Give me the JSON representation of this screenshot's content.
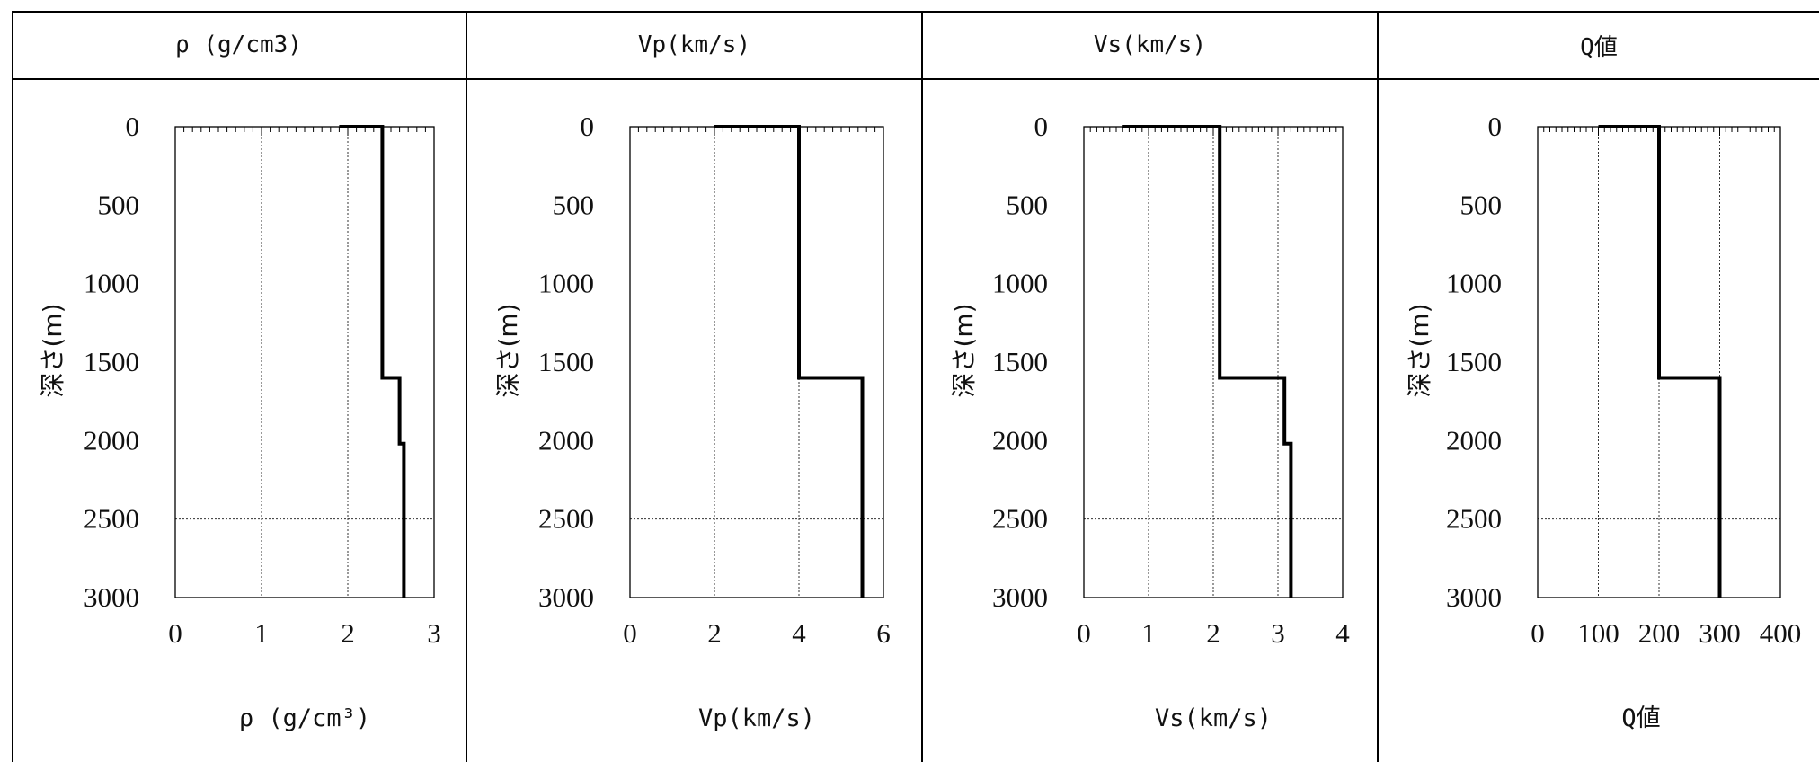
{
  "panel_headers": [
    "ρ (g/cm3)",
    "Vp(km/s)",
    "Vs(km/s)",
    "Q値"
  ],
  "chart_data": [
    {
      "type": "line",
      "title": "ρ (g/cm3)",
      "xlabel": "ρ (g/cm³)",
      "ylabel": "深さ(m)",
      "xlim": [
        0,
        3
      ],
      "ylim": [
        3000,
        0
      ],
      "xticks": [
        "0",
        "1",
        "2",
        "3"
      ],
      "yticks": [
        "0",
        "500",
        "1000",
        "1500",
        "2000",
        "2500",
        "3000"
      ],
      "grid_x": [
        1,
        2
      ],
      "grid_y": [
        2500
      ],
      "series": [
        {
          "x": [
            1.9,
            2.4,
            2.4,
            2.6,
            2.6,
            2.65,
            2.65
          ],
          "y": [
            0,
            0,
            1600,
            1600,
            2020,
            2020,
            3000
          ]
        }
      ]
    },
    {
      "type": "line",
      "title": "Vp(km/s)",
      "xlabel": "Vp(km/s)",
      "ylabel": "深さ(m)",
      "xlim": [
        0,
        6
      ],
      "ylim": [
        3000,
        0
      ],
      "xticks": [
        "0",
        "2",
        "4",
        "6"
      ],
      "yticks": [
        "0",
        "500",
        "1000",
        "1500",
        "2000",
        "2500",
        "3000"
      ],
      "grid_x": [
        2,
        4
      ],
      "grid_y": [
        2500
      ],
      "series": [
        {
          "x": [
            2.0,
            4.0,
            4.0,
            5.5,
            5.5
          ],
          "y": [
            0,
            0,
            1600,
            1600,
            3000
          ]
        }
      ]
    },
    {
      "type": "line",
      "title": "Vs(km/s)",
      "xlabel": "Vs(km/s)",
      "ylabel": "深さ(m)",
      "xlim": [
        0,
        4
      ],
      "ylim": [
        3000,
        0
      ],
      "xticks": [
        "0",
        "1",
        "2",
        "3",
        "4"
      ],
      "yticks": [
        "0",
        "500",
        "1000",
        "1500",
        "2000",
        "2500",
        "3000"
      ],
      "grid_x": [
        1,
        2,
        3
      ],
      "grid_y": [
        2500
      ],
      "series": [
        {
          "x": [
            0.6,
            2.1,
            2.1,
            3.1,
            3.1,
            3.2,
            3.2
          ],
          "y": [
            0,
            0,
            1600,
            1600,
            2020,
            2020,
            3000
          ]
        }
      ]
    },
    {
      "type": "line",
      "title": "Q値",
      "xlabel": "Q値",
      "ylabel": "深さ(m)",
      "xlim": [
        0,
        400
      ],
      "ylim": [
        3000,
        0
      ],
      "xticks": [
        "0",
        "100",
        "200",
        "300",
        "400"
      ],
      "yticks": [
        "0",
        "500",
        "1000",
        "1500",
        "2000",
        "2500",
        "3000"
      ],
      "grid_x": [
        100,
        200,
        300
      ],
      "grid_y": [
        2500
      ],
      "series": [
        {
          "x": [
            100,
            200,
            200,
            300,
            300
          ],
          "y": [
            0,
            0,
            1600,
            1600,
            3000
          ]
        }
      ]
    }
  ]
}
